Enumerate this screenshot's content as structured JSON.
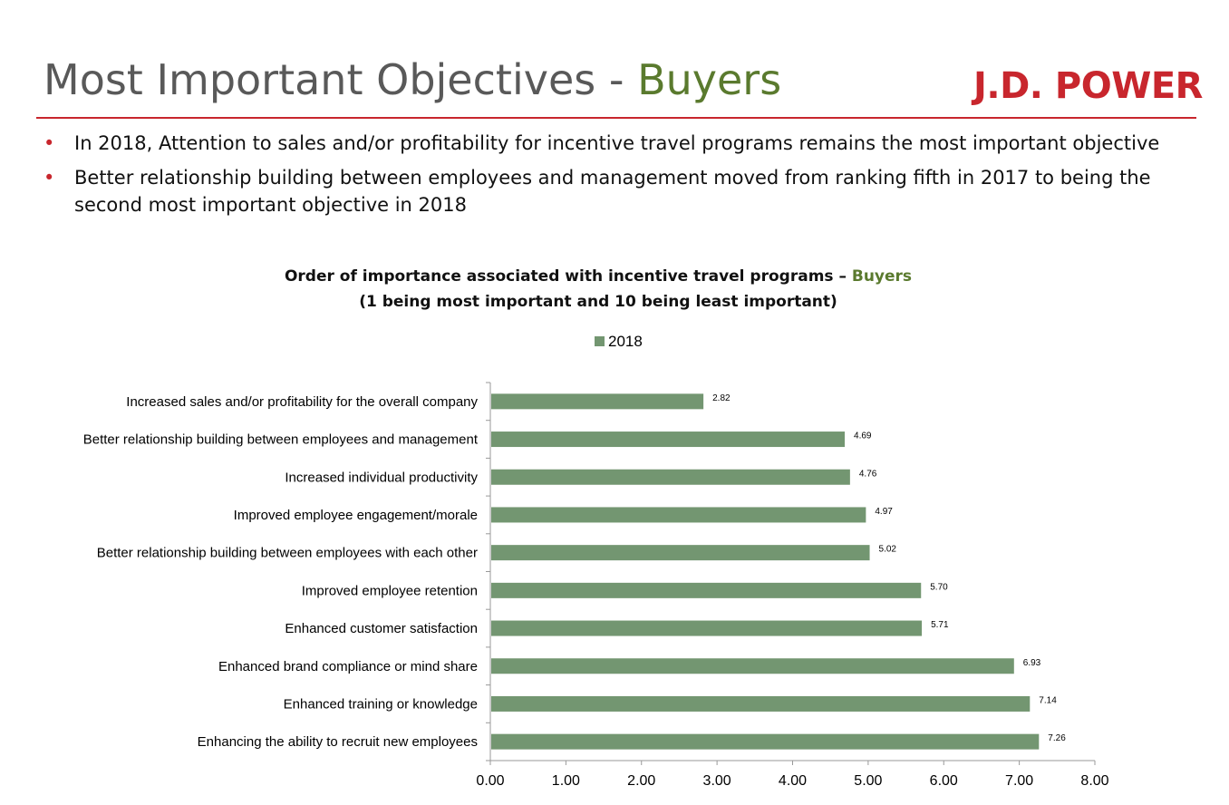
{
  "header": {
    "title_main": "Most Important Objectives - ",
    "title_highlight": "Buyers",
    "logo": "J.D. POWER"
  },
  "bullets": [
    "In 2018, Attention to sales and/or profitability for incentive travel programs remains the most important objective",
    "Better relationship building between employees and management moved from ranking fifth in 2017 to being the second most important objective in 2018"
  ],
  "colors": {
    "title": "#595959",
    "accent_green": "#5a7a2e",
    "brand_red": "#c8262d",
    "bar": "#739671"
  },
  "chart_data": {
    "type": "bar",
    "orientation": "horizontal",
    "title_line1_main": "Order of importance associated with incentive travel programs – ",
    "title_line1_highlight": "Buyers",
    "title_line2": "(1 being most important and 10 being least important)",
    "legend": {
      "placement": "top-center",
      "entries": [
        "2018"
      ]
    },
    "categories": [
      "Increased sales and/or profitability for the overall company",
      "Better relationship building between employees and management",
      "Increased individual productivity",
      "Improved employee engagement/morale",
      "Better relationship building between employees with each other",
      "Improved employee retention",
      "Enhanced customer satisfaction",
      "Enhanced brand compliance or mind share",
      "Enhanced training or knowledge",
      "Enhancing the ability to recruit new employees"
    ],
    "series": [
      {
        "name": "2018",
        "values": [
          2.82,
          4.69,
          4.76,
          4.97,
          5.02,
          5.7,
          5.71,
          6.93,
          7.14,
          7.26
        ],
        "labels": [
          "2.82",
          "4.69",
          "4.76",
          "4.97",
          "5.02",
          "5.70",
          "5.71",
          "6.93",
          "7.14",
          "7.26"
        ]
      }
    ],
    "xlim": [
      0,
      8
    ],
    "xticks": [
      0,
      1,
      2,
      3,
      4,
      5,
      6,
      7,
      8
    ],
    "xtick_labels": [
      "0.00",
      "1.00",
      "2.00",
      "3.00",
      "4.00",
      "5.00",
      "6.00",
      "7.00",
      "8.00"
    ],
    "grid": false
  }
}
